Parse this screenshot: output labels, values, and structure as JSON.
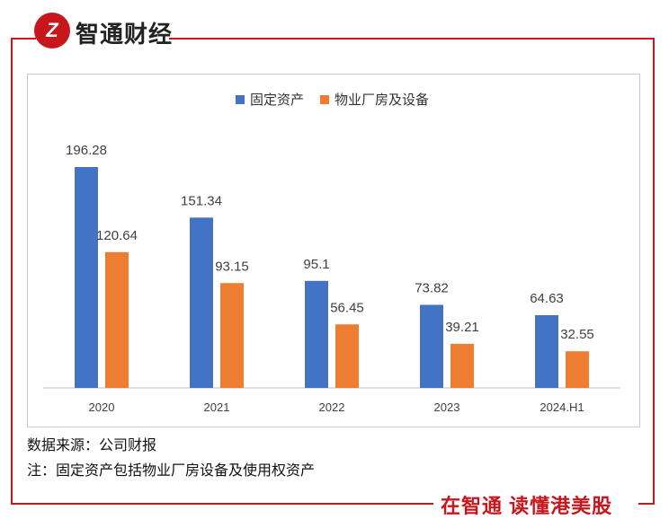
{
  "brand": {
    "logo_text": "Z",
    "name": "智通财经"
  },
  "colors": {
    "series1": "#4472c4",
    "series2": "#ed7d31",
    "frame": "#c8161d"
  },
  "chart_data": {
    "type": "bar",
    "title": "",
    "categories": [
      "2020",
      "2021",
      "2022",
      "2023",
      "2024.H1"
    ],
    "series": [
      {
        "name": "固定资产",
        "values": [
          196.28,
          151.34,
          95.1,
          73.82,
          64.63
        ],
        "labels": [
          "196.28",
          "151.34",
          "95.1",
          "73.82",
          "64.63"
        ]
      },
      {
        "name": "物业厂房及设备",
        "values": [
          120.64,
          93.15,
          56.45,
          39.21,
          32.55
        ],
        "labels": [
          "120.64",
          "93.15",
          "56.45",
          "39.21",
          "32.55"
        ]
      }
    ],
    "xlabel": "",
    "ylabel": "",
    "ylim": [
      0,
      230
    ],
    "legend": "top-center",
    "grid": false
  },
  "footer": {
    "source": "数据来源：公司财报",
    "note": "注：固定资产包括物业厂房设备及使用权资产",
    "slogan": "在智通 读懂港美股"
  }
}
